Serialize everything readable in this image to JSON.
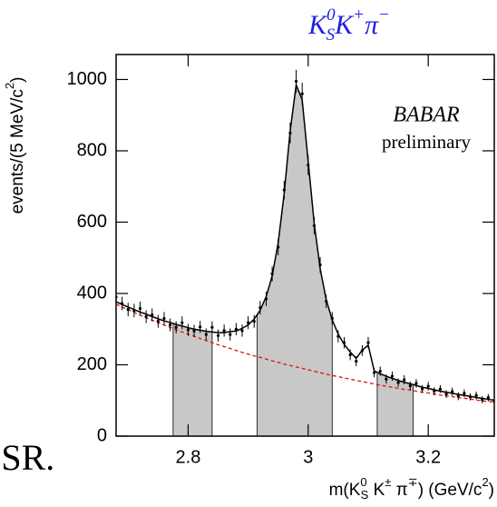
{
  "chart_data": {
    "type": "scatter",
    "title": [
      "K",
      "0",
      "S",
      "K",
      "+",
      "π",
      "−"
    ],
    "title_color": "#1f1fe6",
    "x_label": [
      "m(K",
      "0",
      "S",
      " K",
      "±",
      " π",
      "∓",
      ") (GeV/c",
      "2",
      ")"
    ],
    "y_label": [
      "events/(5 MeV/c",
      "2",
      ")"
    ],
    "annotations": [
      "BABAR",
      "preliminary",
      "ISR."
    ],
    "xlim": [
      2.68,
      3.31
    ],
    "ylim": [
      0,
      1070
    ],
    "xticks": [
      2.8,
      3,
      3.2
    ],
    "yticks": [
      0,
      200,
      400,
      600,
      800,
      1000
    ],
    "x": [
      2.68,
      2.69,
      2.7,
      2.71,
      2.72,
      2.73,
      2.74,
      2.75,
      2.76,
      2.77,
      2.78,
      2.79,
      2.8,
      2.81,
      2.82,
      2.83,
      2.84,
      2.85,
      2.86,
      2.87,
      2.88,
      2.89,
      2.9,
      2.91,
      2.92,
      2.93,
      2.94,
      2.95,
      2.96,
      2.97,
      2.98,
      2.99,
      3.0,
      3.01,
      3.02,
      3.03,
      3.04,
      3.05,
      3.06,
      3.07,
      3.08,
      3.09,
      3.1,
      3.11,
      3.12,
      3.13,
      3.14,
      3.15,
      3.16,
      3.17,
      3.18,
      3.19,
      3.2,
      3.21,
      3.22,
      3.23,
      3.24,
      3.25,
      3.26,
      3.27,
      3.28,
      3.29,
      3.3,
      3.31
    ],
    "shaded_regions": [
      [
        2.775,
        2.84
      ],
      [
        2.915,
        3.04
      ],
      [
        3.115,
        3.175
      ]
    ],
    "shade_color": "#c8c8c8",
    "series": [
      {
        "type": "errorbar",
        "color": "#000000",
        "values": [
          390,
          372,
          355,
          352,
          358,
          335,
          340,
          322,
          330,
          312,
          305,
          318,
          298,
          295,
          306,
          285,
          305,
          282,
          296,
          285,
          300,
          296,
          318,
          322,
          360,
          385,
          455,
          530,
          690,
          850,
          995,
          960,
          760,
          590,
          480,
          378,
          330,
          280,
          262,
          228,
          210,
          240,
          262,
          178,
          182,
          160,
          168,
          150,
          158,
          141,
          148,
          132,
          140,
          126,
          132,
          118,
          125,
          112,
          120,
          110,
          114,
          102,
          108,
          98
        ],
        "errors": [
          20,
          19,
          19,
          19,
          19,
          18,
          18,
          18,
          18,
          18,
          17,
          18,
          17,
          17,
          17,
          17,
          17,
          17,
          17,
          17,
          17,
          17,
          18,
          18,
          19,
          20,
          21,
          23,
          26,
          29,
          32,
          31,
          28,
          24,
          22,
          19,
          18,
          17,
          16,
          15,
          14,
          15,
          16,
          13,
          13,
          13,
          13,
          12,
          13,
          12,
          12,
          11,
          12,
          11,
          11,
          11,
          11,
          11,
          11,
          10,
          11,
          10,
          10,
          10
        ]
      },
      {
        "type": "line",
        "color": "#000000",
        "dashed": false,
        "values": [
          377,
          369,
          362,
          355,
          348,
          342,
          335,
          329,
          323,
          319,
          313,
          309,
          304,
          300,
          297,
          294,
          292,
          290,
          290,
          293,
          295,
          302,
          312,
          328,
          353,
          391,
          449,
          542,
          680,
          856,
          985,
          943,
          770,
          597,
          469,
          383,
          326,
          286,
          257,
          236,
          218,
          241,
          255,
          183,
          175,
          168,
          162,
          156,
          151,
          147,
          142,
          137,
          134,
          130,
          126,
          123,
          120,
          117,
          114,
          112,
          108,
          106,
          103,
          101
        ]
      },
      {
        "type": "line",
        "color": "#e01010",
        "dashed": true,
        "values": [
          370,
          362,
          354,
          347,
          339,
          332,
          325,
          318,
          311,
          305,
          298,
          292,
          286,
          280,
          274,
          268,
          262,
          256,
          251,
          246,
          240,
          235,
          230,
          225,
          221,
          216,
          211,
          207,
          202,
          198,
          194,
          190,
          186,
          182,
          178,
          174,
          170,
          167,
          163,
          160,
          156,
          153,
          150,
          146,
          143,
          140,
          137,
          134,
          131,
          129,
          126,
          123,
          121,
          118,
          115,
          113,
          111,
          108,
          106,
          104,
          101,
          99,
          97,
          95
        ]
      }
    ]
  }
}
